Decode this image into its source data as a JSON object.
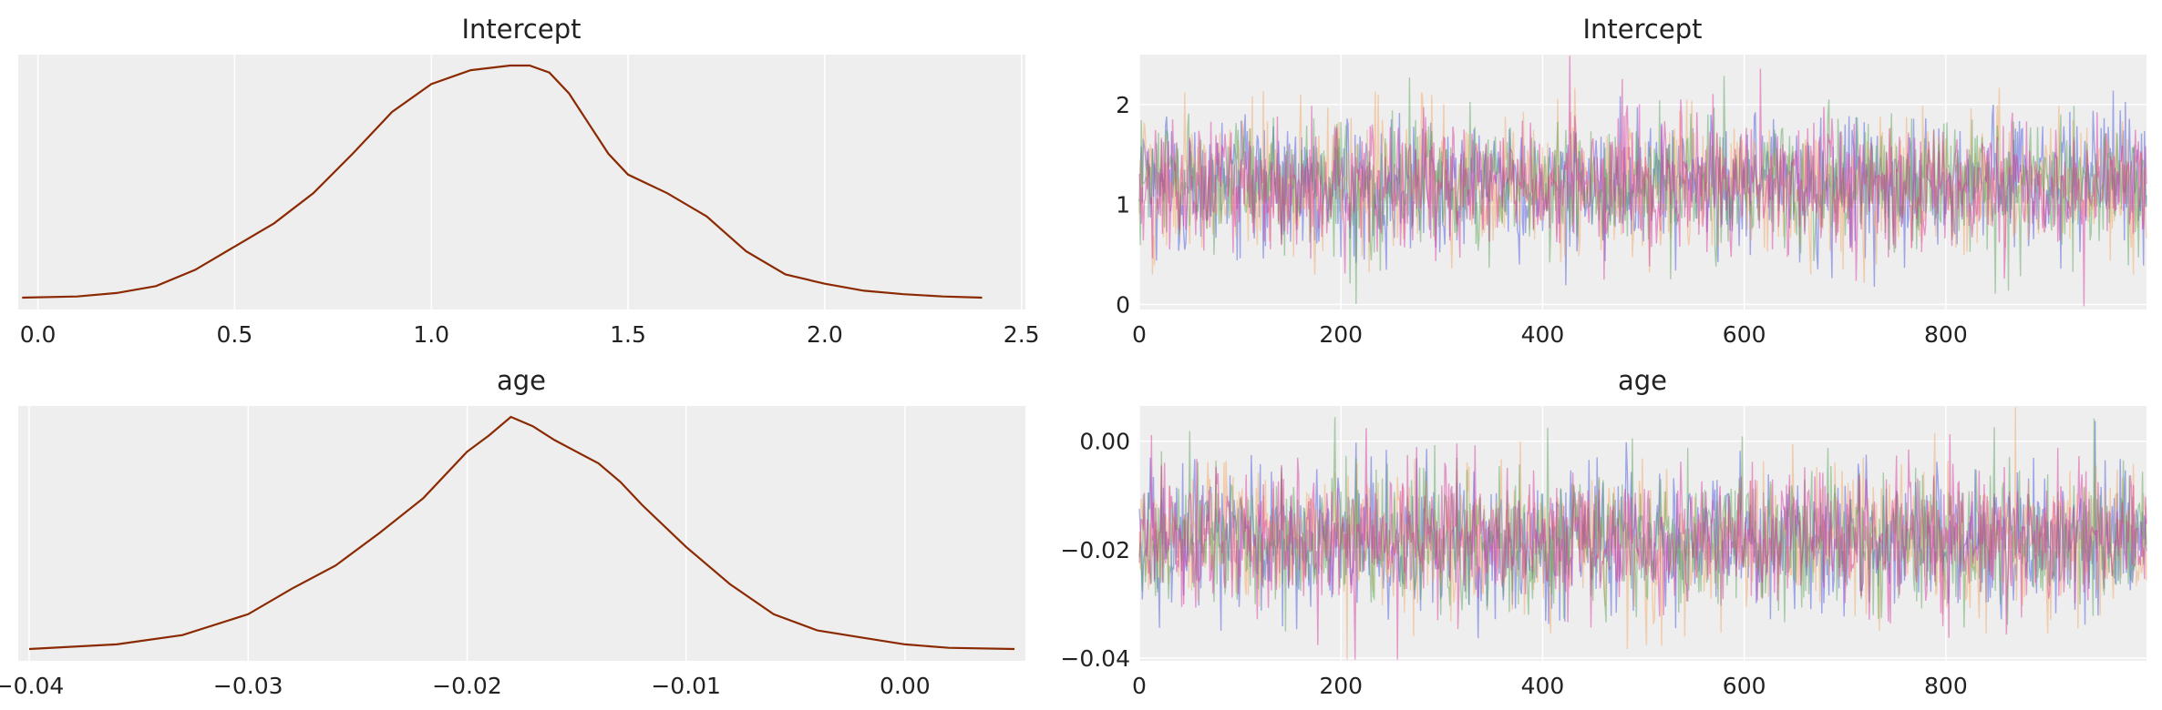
{
  "chart_data": [
    {
      "type": "line",
      "title": "Intercept",
      "kind": "kde",
      "xlim": [
        -0.05,
        2.51
      ],
      "xticks": [
        "0.0",
        "0.5",
        "1.0",
        "1.5",
        "2.0",
        "2.5"
      ],
      "color": "#8b2a02",
      "x": [
        -0.04,
        0.1,
        0.2,
        0.3,
        0.4,
        0.5,
        0.6,
        0.7,
        0.8,
        0.9,
        1.0,
        1.1,
        1.2,
        1.25,
        1.3,
        1.35,
        1.4,
        1.45,
        1.5,
        1.6,
        1.7,
        1.8,
        1.9,
        2.0,
        2.1,
        2.2,
        2.3,
        2.4
      ],
      "y": [
        0.0,
        0.005,
        0.02,
        0.05,
        0.12,
        0.22,
        0.32,
        0.45,
        0.62,
        0.8,
        0.92,
        0.98,
        1.0,
        1.0,
        0.97,
        0.88,
        0.75,
        0.62,
        0.53,
        0.45,
        0.35,
        0.2,
        0.1,
        0.06,
        0.03,
        0.015,
        0.005,
        0.0
      ]
    },
    {
      "type": "line",
      "title": "Intercept",
      "kind": "trace",
      "xlim": [
        0,
        999
      ],
      "ylim": [
        -0.05,
        2.5
      ],
      "xticks": [
        "0",
        "200",
        "400",
        "600",
        "800"
      ],
      "yticks": [
        "0",
        "1",
        "2"
      ],
      "n_draws": 1000,
      "series": [
        {
          "color": "#3b4cdb",
          "mean": 1.2,
          "sd": 0.33
        },
        {
          "color": "#f2a15a",
          "mean": 1.2,
          "sd": 0.33
        },
        {
          "color": "#4fa04f",
          "mean": 1.2,
          "sd": 0.33
        },
        {
          "color": "#d62a9a",
          "mean": 1.2,
          "sd": 0.33
        }
      ]
    },
    {
      "type": "line",
      "title": "age",
      "kind": "kde",
      "xlim": [
        -0.0405,
        0.0055
      ],
      "xticks": [
        "−0.04",
        "−0.03",
        "−0.02",
        "−0.01",
        "0.00"
      ],
      "color": "#8b2a02",
      "x": [
        -0.04,
        -0.036,
        -0.033,
        -0.03,
        -0.028,
        -0.026,
        -0.024,
        -0.022,
        -0.02,
        -0.019,
        -0.018,
        -0.017,
        -0.016,
        -0.015,
        -0.014,
        -0.013,
        -0.012,
        -0.01,
        -0.008,
        -0.006,
        -0.004,
        -0.002,
        0.0,
        0.002,
        0.005
      ],
      "y": [
        0.0,
        0.02,
        0.06,
        0.15,
        0.26,
        0.36,
        0.5,
        0.65,
        0.85,
        0.92,
        1.0,
        0.96,
        0.9,
        0.85,
        0.8,
        0.72,
        0.62,
        0.44,
        0.28,
        0.15,
        0.08,
        0.05,
        0.02,
        0.005,
        0.0
      ]
    },
    {
      "type": "line",
      "title": "age",
      "kind": "trace",
      "xlim": [
        0,
        999
      ],
      "ylim": [
        -0.0405,
        0.0065
      ],
      "xticks": [
        "0",
        "200",
        "400",
        "600",
        "800"
      ],
      "yticks": [
        "0.00",
        "−0.02",
        "−0.04"
      ],
      "n_draws": 1000,
      "series": [
        {
          "color": "#3b4cdb",
          "mean": -0.018,
          "sd": 0.0065
        },
        {
          "color": "#f2a15a",
          "mean": -0.018,
          "sd": 0.0065
        },
        {
          "color": "#4fa04f",
          "mean": -0.018,
          "sd": 0.0065
        },
        {
          "color": "#d62a9a",
          "mean": -0.018,
          "sd": 0.0065
        }
      ]
    }
  ],
  "style": {
    "panel_bg": "#eeeeee",
    "grid": "#ffffff"
  }
}
